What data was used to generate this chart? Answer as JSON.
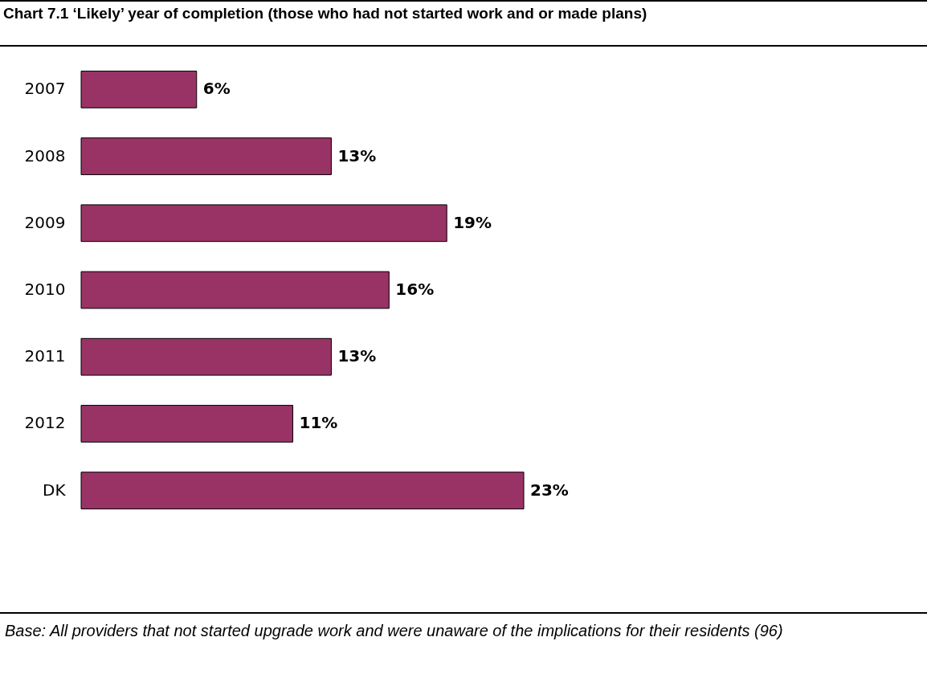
{
  "chart_data": {
    "type": "bar",
    "orientation": "horizontal",
    "title": "Chart 7.1 ‘Likely’ year of completion (those who had not started work and or made plans)",
    "categories": [
      "2007",
      "2008",
      "2009",
      "2010",
      "2011",
      "2012",
      "DK"
    ],
    "values": [
      6,
      13,
      19,
      16,
      13,
      11,
      23
    ],
    "value_labels": [
      "6%",
      "13%",
      "19%",
      "16%",
      "13%",
      "11%",
      "23%"
    ],
    "color": "#993366",
    "annotations": [
      "Base: All providers that not started upgrade work and were unaware of the implications for their residents (96)"
    ]
  }
}
